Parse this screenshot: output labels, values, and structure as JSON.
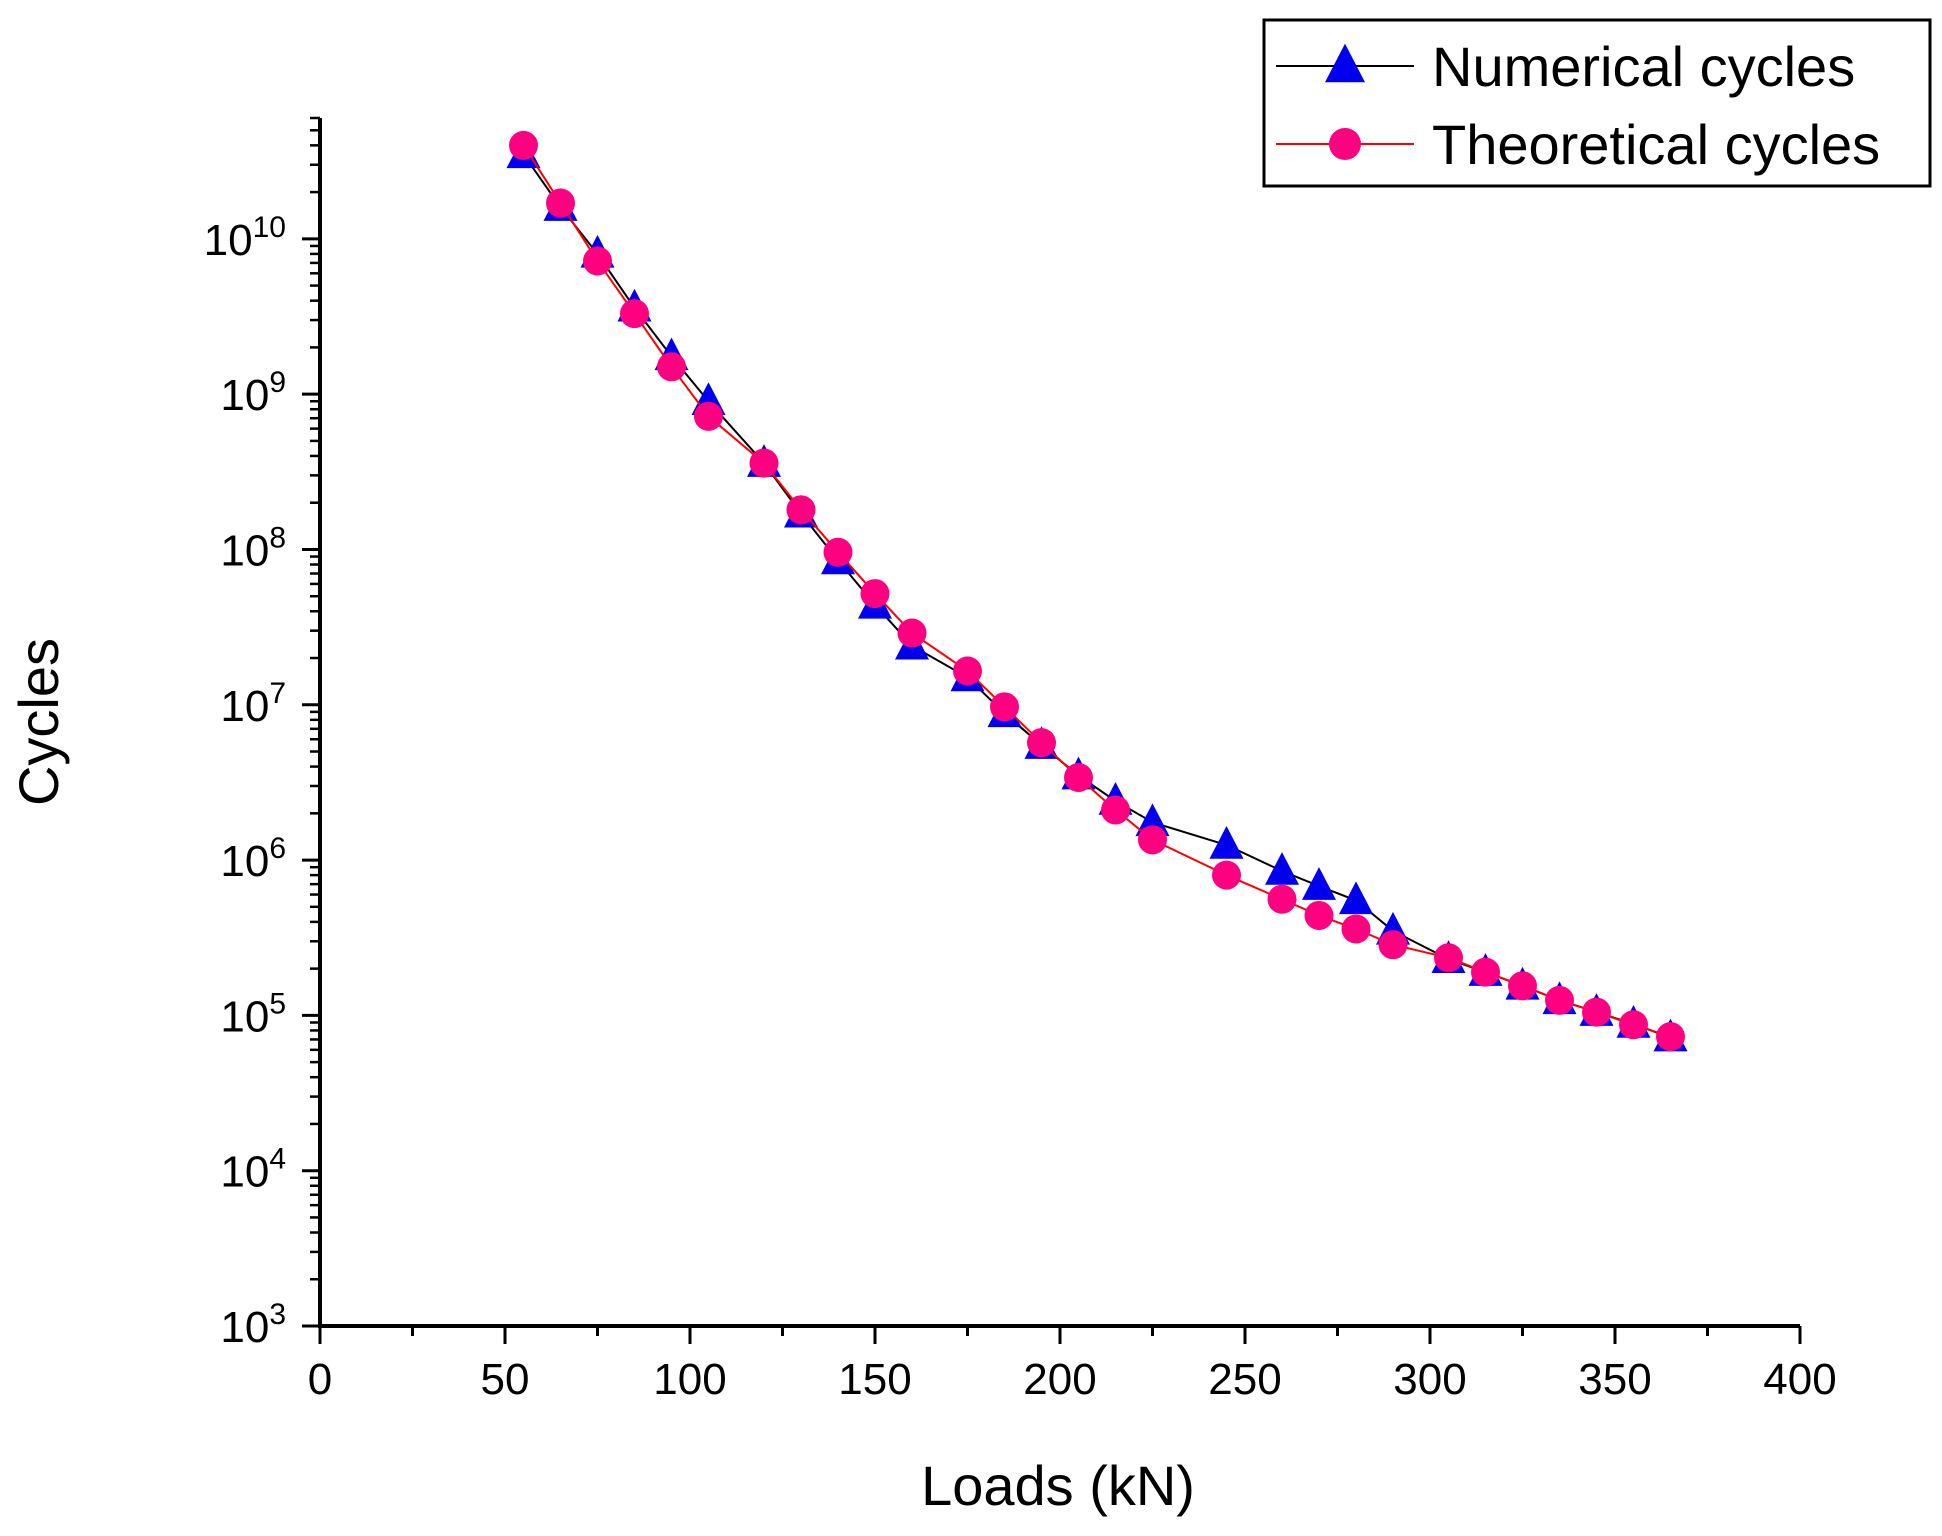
{
  "chart_data": {
    "type": "line",
    "title": "",
    "xlabel": "Loads (kN)",
    "ylabel": "Cycles",
    "xlim": [
      0,
      400
    ],
    "ylim": [
      1000,
      60000000000
    ],
    "yscale": "log",
    "x_ticks": [
      0,
      50,
      100,
      150,
      200,
      250,
      300,
      350,
      400
    ],
    "x_tick_labels": [
      "0",
      "50",
      "100",
      "150",
      "200",
      "250",
      "300",
      "350",
      "400"
    ],
    "y_ticks": [
      {
        "value": 1000,
        "base": "10",
        "exp": "3"
      },
      {
        "value": 10000,
        "base": "10",
        "exp": "4"
      },
      {
        "value": 100000,
        "base": "10",
        "exp": "5"
      },
      {
        "value": 1000000,
        "base": "10",
        "exp": "6"
      },
      {
        "value": 10000000,
        "base": "10",
        "exp": "7"
      },
      {
        "value": 100000000,
        "base": "10",
        "exp": "8"
      },
      {
        "value": 1000000000,
        "base": "10",
        "exp": "9"
      },
      {
        "value": 10000000000,
        "base": "10",
        "exp": "10"
      }
    ],
    "grid": false,
    "legend_position": "top-right",
    "series": [
      {
        "name": "Numerical cycles",
        "line_color": "#000000",
        "marker": "triangle",
        "marker_color": "#0000ee",
        "x": [
          55,
          65,
          75,
          85,
          95,
          105,
          120,
          130,
          140,
          150,
          160,
          175,
          185,
          195,
          205,
          215,
          225,
          245,
          260,
          270,
          280,
          290,
          305,
          315,
          325,
          335,
          345,
          355,
          365
        ],
        "y": [
          35000000000,
          16000000000,
          8000000000,
          3600000000,
          1750000000,
          900000000,
          360000000,
          170000000,
          85000000,
          44000000,
          24000000,
          15000000,
          8800000,
          5500000,
          3500000,
          2400000,
          1750000,
          1250000,
          850000,
          680000,
          550000,
          350000,
          230000,
          190000,
          155000,
          125000,
          105000,
          88000,
          72000
        ]
      },
      {
        "name": "Theoretical cycles",
        "line_color": "#ff0000",
        "marker": "circle",
        "marker_color": "#ff0080",
        "x": [
          55,
          65,
          75,
          85,
          95,
          105,
          120,
          130,
          140,
          150,
          160,
          175,
          185,
          195,
          205,
          215,
          225,
          245,
          260,
          270,
          280,
          290,
          305,
          315,
          325,
          335,
          345,
          355,
          365
        ],
        "y": [
          40000000000,
          17000000000,
          7200000000,
          3300000000,
          1500000000,
          720000000,
          360000000,
          180000000,
          96000000,
          52000000,
          29000000,
          16500000,
          9700000,
          5700000,
          3400000,
          2100000,
          1350000,
          800000,
          560000,
          440000,
          360000,
          285000,
          235000,
          190000,
          155000,
          125000,
          105000,
          87000,
          73000
        ]
      }
    ]
  }
}
